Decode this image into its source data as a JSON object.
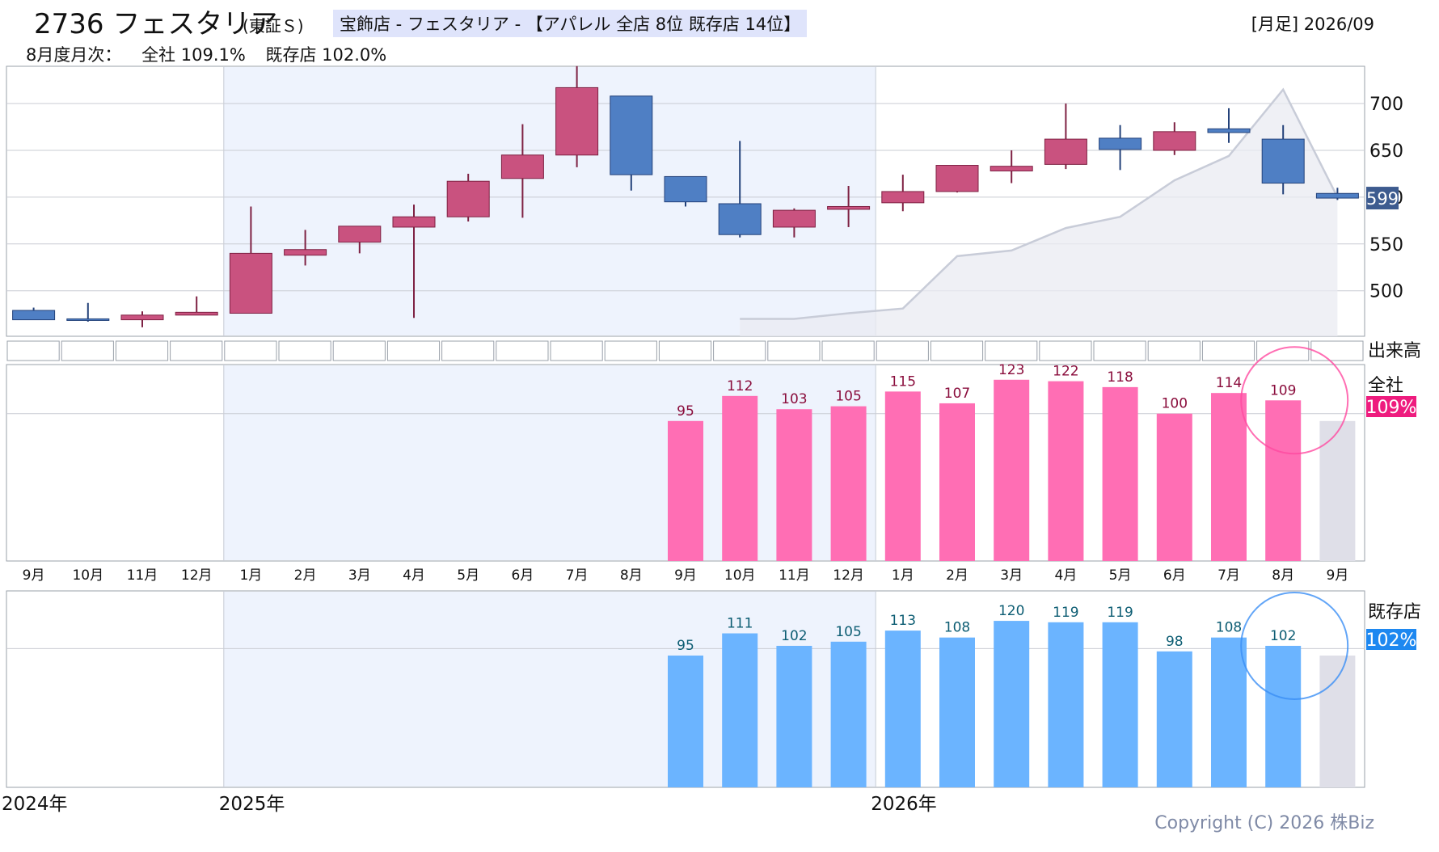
{
  "header": {
    "code_name": "2736 フェスタリア",
    "market": "(東証Ｓ)",
    "sector": "宝飾店 - フェスタリア - 【アパレル 全店 8位 既存店 14位】",
    "period": "[月足] 2026/09",
    "summary_label": "8月度月次：",
    "summary_all": "全社 109.1%",
    "summary_existing": "既存店 102.0%"
  },
  "labels": {
    "volume": "出来高",
    "all_company": "全社",
    "existing_store": "既存店",
    "current_price": "599",
    "all_pct": "109%",
    "existing_pct": "102%"
  },
  "years": [
    "2024年",
    "2025年",
    "2026年"
  ],
  "copyright": "Copyright (C) 2026 株Biz",
  "colors": {
    "up": "#c9527f",
    "down": "#4f7fc4",
    "all_bar": "#ff6eb4",
    "existing_bar": "#6bb4ff",
    "shade": "#eef3fd",
    "ma": "#c8ccd8"
  },
  "chart_data": [
    {
      "type": "candlestick",
      "x": [
        "9月",
        "10月",
        "11月",
        "12月",
        "1月",
        "2月",
        "3月",
        "4月",
        "5月",
        "6月",
        "7月",
        "8月",
        "9月",
        "10月",
        "11月",
        "12月",
        "1月",
        "2月",
        "3月",
        "4月",
        "5月",
        "6月",
        "7月",
        "8月",
        "9月"
      ],
      "ohlc": [
        [
          479,
          482,
          470,
          469
        ],
        [
          470,
          487,
          467,
          469
        ],
        [
          469,
          478,
          461,
          474
        ],
        [
          474,
          494,
          474,
          477
        ],
        [
          476,
          590,
          476,
          540
        ],
        [
          538,
          565,
          527,
          544
        ],
        [
          552,
          568,
          540,
          569
        ],
        [
          568,
          592,
          471,
          579
        ],
        [
          579,
          625,
          574,
          617
        ],
        [
          620,
          678,
          578,
          645
        ],
        [
          645,
          740,
          632,
          717
        ],
        [
          708,
          708,
          607,
          624
        ],
        [
          622,
          622,
          590,
          595
        ],
        [
          593,
          660,
          557,
          560
        ],
        [
          568,
          588,
          557,
          586
        ],
        [
          587,
          612,
          568,
          590
        ],
        [
          594,
          624,
          585,
          606
        ],
        [
          606,
          634,
          605,
          634
        ],
        [
          628,
          650,
          615,
          633
        ],
        [
          635,
          700,
          630,
          662
        ],
        [
          663,
          677,
          629,
          651
        ],
        [
          650,
          680,
          645,
          670
        ],
        [
          673,
          695,
          658,
          669
        ],
        [
          662,
          677,
          603,
          615
        ],
        [
          604,
          610,
          597,
          599
        ]
      ],
      "moving_average": [
        null,
        null,
        null,
        null,
        null,
        null,
        null,
        null,
        null,
        null,
        null,
        null,
        null,
        470,
        470,
        476,
        481,
        537,
        543,
        567,
        579,
        618,
        644,
        715,
        600
      ],
      "y_ticks": [
        500,
        550,
        600,
        650,
        700
      ],
      "last_price": 599
    },
    {
      "type": "bar",
      "title": "全社",
      "categories": [
        "9月",
        "10月",
        "11月",
        "12月",
        "1月",
        "2月",
        "3月",
        "4月",
        "5月",
        "6月",
        "7月",
        "8月",
        "9月"
      ],
      "values": [
        95,
        112,
        103,
        105,
        115,
        107,
        123,
        122,
        118,
        100,
        114,
        109,
        null
      ],
      "latest_pct": "109%"
    },
    {
      "type": "bar",
      "title": "既存店",
      "categories": [
        "9月",
        "10月",
        "11月",
        "12月",
        "1月",
        "2月",
        "3月",
        "4月",
        "5月",
        "6月",
        "7月",
        "8月",
        "9月"
      ],
      "values": [
        95,
        111,
        102,
        105,
        113,
        108,
        120,
        119,
        119,
        98,
        108,
        102,
        null
      ],
      "latest_pct": "102%"
    }
  ]
}
